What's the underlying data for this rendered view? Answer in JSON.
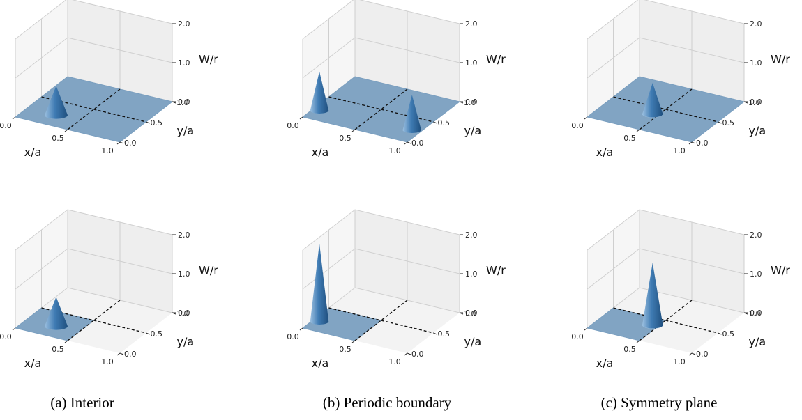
{
  "chart_data": {
    "type": "3d-surface-grid",
    "axis_labels": {
      "x": "x/a",
      "y": "y/a",
      "z": "W/r"
    },
    "ticks": {
      "x": [
        "0.0",
        "0.5",
        "1.0"
      ],
      "y": [
        "0.0",
        "0.5",
        "1.0"
      ],
      "z": [
        "0.0",
        "1.0",
        "2.0"
      ]
    },
    "ranges": {
      "x": [
        0,
        1
      ],
      "y": [
        0,
        1
      ],
      "z": [
        0,
        2
      ]
    },
    "columns": [
      {
        "caption": "(a) Interior"
      },
      {
        "caption": "(b) Periodic boundary"
      },
      {
        "caption": "(c) Symmetry plane"
      }
    ],
    "panels": [
      {
        "row": 0,
        "col": 0,
        "domain": "full",
        "cones": [
          {
            "x": 0.28,
            "y": 0.22,
            "height": 0.75,
            "radius": 0.1
          }
        ]
      },
      {
        "row": 0,
        "col": 1,
        "domain": "full",
        "cones": [
          {
            "x": 0.06,
            "y": 0.2,
            "height": 1.0,
            "radius": 0.08
          },
          {
            "x": 0.92,
            "y": 0.25,
            "height": 0.9,
            "radius": 0.08
          }
        ]
      },
      {
        "row": 0,
        "col": 2,
        "domain": "full",
        "cones": [
          {
            "x": 0.45,
            "y": 0.35,
            "height": 0.8,
            "radius": 0.09
          }
        ]
      },
      {
        "row": 1,
        "col": 0,
        "domain": "quarter",
        "cones": [
          {
            "x": 0.28,
            "y": 0.22,
            "height": 0.75,
            "radius": 0.1
          }
        ]
      },
      {
        "row": 1,
        "col": 1,
        "domain": "quarter",
        "cones": [
          {
            "x": 0.06,
            "y": 0.2,
            "height": 2.0,
            "radius": 0.08
          }
        ]
      },
      {
        "row": 1,
        "col": 2,
        "domain": "quarter",
        "cones": [
          {
            "x": 0.45,
            "y": 0.35,
            "height": 1.6,
            "radius": 0.09
          }
        ]
      }
    ],
    "colors": {
      "surface": "#7a9fc0",
      "cone": "#2d6699",
      "cone_light": "#9cc0e0",
      "pane": "#f3f3f3",
      "grid": "#cfcfcf",
      "dashed": "#111111"
    }
  }
}
